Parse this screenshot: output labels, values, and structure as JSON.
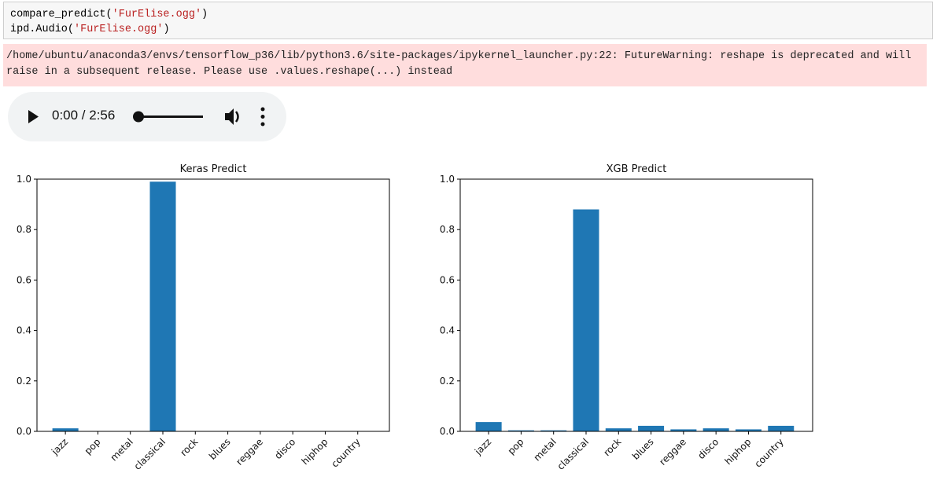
{
  "code": {
    "lines": [
      [
        "compare_predict(",
        "'FurElise.ogg'",
        ")"
      ],
      [
        "ipd.Audio(",
        "'FurElise.ogg'",
        ")"
      ]
    ]
  },
  "warning": "/home/ubuntu/anaconda3/envs/tensorflow_p36/lib/python3.6/site-packages/ipykernel_launcher.py:22: FutureWarning: reshape is deprecated and will raise in a subsequent release. Please use .values.reshape(...) instead",
  "audio": {
    "time": "0:00 / 2:56"
  },
  "chart_data": [
    {
      "type": "bar",
      "title": "Keras Predict",
      "color": "#1f77b4",
      "categories": [
        "jazz",
        "pop",
        "metal",
        "classical",
        "rock",
        "blues",
        "reggae",
        "disco",
        "hiphop",
        "country"
      ],
      "values": [
        0.012,
        0,
        0,
        0.99,
        0,
        0,
        0,
        0,
        0,
        0
      ],
      "ylim": [
        0,
        1
      ],
      "yticks": [
        {
          "value": 0,
          "label": "0.0"
        },
        0.2,
        0.4,
        0.6,
        0.8,
        {
          "value": 1,
          "label": "1.0"
        }
      ]
    },
    {
      "type": "bar",
      "title": "XGB Predict",
      "color": "#1f77b4",
      "categories": [
        "jazz",
        "pop",
        "metal",
        "classical",
        "rock",
        "blues",
        "reggae",
        "disco",
        "hiphop",
        "country"
      ],
      "values": [
        0.037,
        0.004,
        0.004,
        0.88,
        0.012,
        0.022,
        0.008,
        0.012,
        0.008,
        0.022
      ],
      "ylim": [
        0,
        1
      ],
      "yticks": [
        {
          "value": 0,
          "label": "0.0"
        },
        0.2,
        0.4,
        0.6,
        0.8,
        {
          "value": 1,
          "label": "1.0"
        }
      ]
    }
  ]
}
